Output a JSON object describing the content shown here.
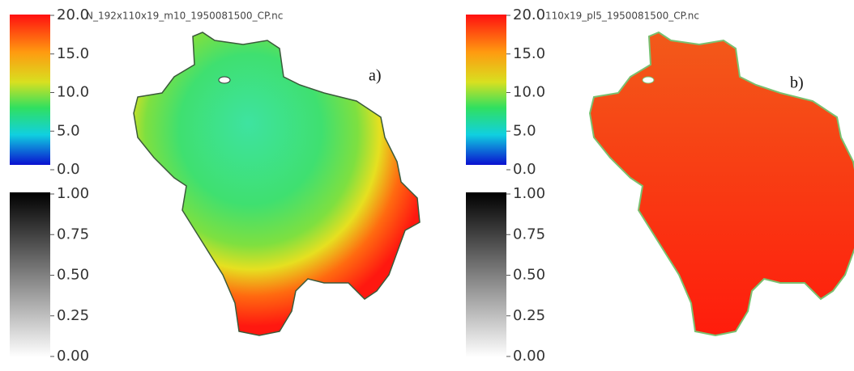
{
  "panels": [
    {
      "file": "N_192x110x19_m10_1950081500_CP.nc",
      "label": "a)",
      "color_ticks": [
        "20.0",
        "15.0",
        "10.0",
        "5.0",
        "0.0"
      ],
      "gray_ticks": [
        "1.00",
        "0.75",
        "0.50",
        "0.25",
        "0.00"
      ]
    },
    {
      "file": "110x19_pl5_1950081500_CP.nc",
      "label": "b)",
      "color_ticks": [
        "20.0",
        "15.0",
        "10.0",
        "5.0",
        "0.0"
      ],
      "gray_ticks": [
        "1.00",
        "0.75",
        "0.50",
        "0.25",
        "0.00"
      ]
    }
  ]
}
